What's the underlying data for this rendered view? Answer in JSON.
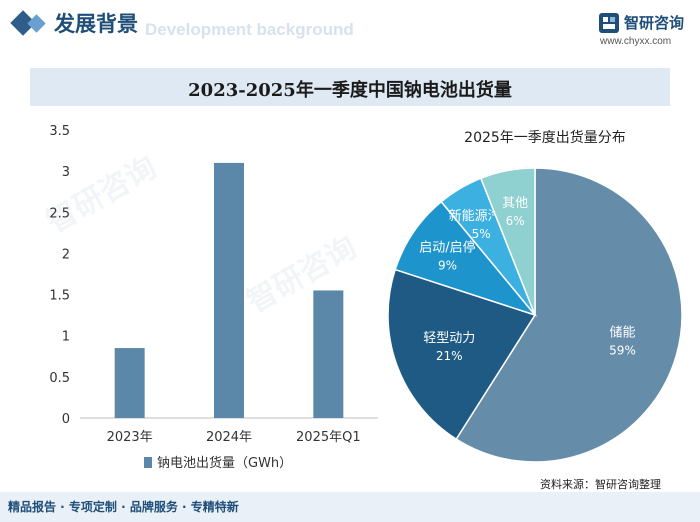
{
  "header": {
    "section_title": "发展背景",
    "section_subtitle": "Development background",
    "logo_name": "智研咨询",
    "logo_url": "www.chyxx.com"
  },
  "main_title": "2023-2025年一季度中国钠电池出货量",
  "chart_data": [
    {
      "type": "bar",
      "categories": [
        "2023年",
        "2024年",
        "2025年Q1"
      ],
      "series": [
        {
          "name": "钠电池出货量（GWh）",
          "values": [
            0.85,
            3.1,
            1.55
          ]
        }
      ],
      "ylim": [
        0,
        3.5
      ],
      "yticks": [
        "0",
        "0.5",
        "1",
        "1.5",
        "2",
        "2.5",
        "3",
        "3.5"
      ],
      "color": "#5b87a8",
      "legend": "bottom"
    },
    {
      "type": "pie",
      "title": "2025年一季度出货量分布",
      "slices": [
        {
          "label": "储能",
          "pct_label": "59%",
          "value": 59,
          "color": "#658ca8"
        },
        {
          "label": "轻型动力",
          "pct_label": "21%",
          "value": 21,
          "color": "#1e5a83"
        },
        {
          "label": "启动/启停",
          "pct_label": "9%",
          "value": 9,
          "color": "#1d94cc"
        },
        {
          "label": "新能源汽车",
          "pct_label": "5%",
          "value": 5,
          "color": "#3db0e2"
        },
        {
          "label": "其他",
          "pct_label": "6%",
          "value": 6,
          "color": "#8fd0d0"
        }
      ]
    }
  ],
  "source": "资料来源：智研咨询整理",
  "footer": "精品报告 · 专项定制 · 品牌服务 · 专精特新",
  "watermark": "智研咨询"
}
